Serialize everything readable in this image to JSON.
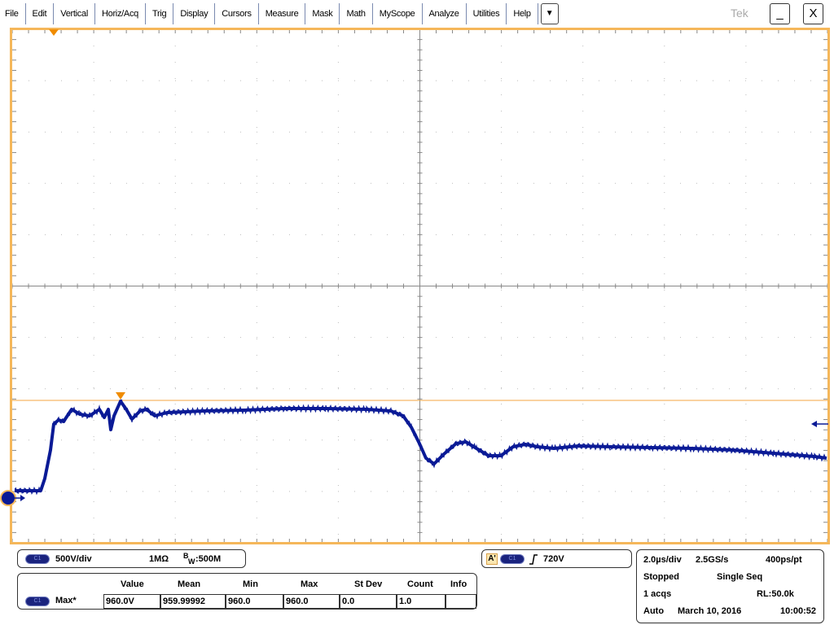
{
  "menu": [
    "File",
    "Edit",
    "Vertical",
    "Horiz/Acq",
    "Trig",
    "Display",
    "Cursors",
    "Measure",
    "Mask",
    "Math",
    "MyScope",
    "Analyze",
    "Utilities",
    "Help"
  ],
  "menu_dropdown_icon": "triangle-down",
  "brand": "Tek",
  "window": {
    "minimize": "_",
    "close": "X"
  },
  "colors": {
    "trace": "#0a1a96",
    "graticule_border": "#f5b75a",
    "trigger": "#f08c00",
    "grid": "#888888"
  },
  "channel": {
    "label": "C1",
    "scale": "500V/div",
    "impedance": "1MΩ",
    "bw_prefix": "B",
    "bw_sub": "W",
    "bw_value": ":500M"
  },
  "trigger": {
    "source_badge": "A'",
    "channel": "C1",
    "slope_icon": "rising-edge",
    "level": "720V"
  },
  "measurement": {
    "headers": [
      "Value",
      "Mean",
      "Min",
      "Max",
      "St Dev",
      "Count",
      "Info"
    ],
    "channel": "C1",
    "name": "Max*",
    "values": [
      "960.0V",
      "959.99992",
      "960.0",
      "960.0",
      "0.0",
      "1.0",
      ""
    ]
  },
  "acquisition": {
    "timebase": "2.0µs/div",
    "sample_rate": "2.5GS/s",
    "resolution": "400ps/pt",
    "state": "Stopped",
    "mode": "Single Seq",
    "acqs": "1 acqs",
    "record_length": "RL:50.0k",
    "trigger_mode": "Auto",
    "date": "March 10, 2016",
    "time": "10:00:52"
  }
}
